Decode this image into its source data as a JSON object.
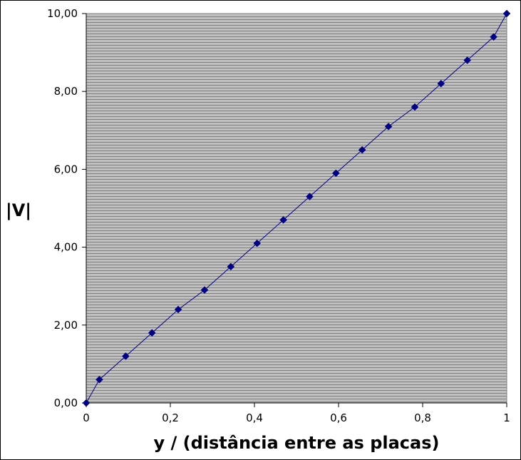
{
  "chart_data": {
    "type": "line",
    "title": "",
    "xlabel": "y / (distância entre as placas)",
    "ylabel": "|V|",
    "xlim": [
      0,
      1
    ],
    "ylim": [
      0,
      10
    ],
    "x_ticks": [
      0,
      0.2,
      0.4,
      0.6,
      0.8,
      1
    ],
    "x_tick_labels": [
      "0",
      "0,2",
      "0,4",
      "0,6",
      "0,8",
      "1"
    ],
    "y_ticks": [
      0,
      2,
      4,
      6,
      8,
      10
    ],
    "y_tick_labels": [
      "0,00",
      "2,00",
      "4,00",
      "6,00",
      "8,00",
      "10,00"
    ],
    "grid": "horizontal",
    "legend": "none",
    "colors": {
      "plot_background": "#c0c0c0",
      "gridline": "#808080",
      "series": "#000080"
    },
    "marker": "diamond",
    "series": [
      {
        "x": [
          0,
          0.0313,
          0.0938,
          0.1563,
          0.2188,
          0.2813,
          0.3438,
          0.4063,
          0.4688,
          0.5313,
          0.5938,
          0.6563,
          0.7188,
          0.7813,
          0.8438,
          0.9063,
          0.9688,
          1
        ],
        "values": [
          0,
          0.6,
          1.2,
          1.8,
          2.4,
          2.9,
          3.5,
          4.1,
          4.7,
          5.3,
          5.9,
          6.5,
          7.1,
          7.6,
          8.2,
          8.8,
          9.4,
          10
        ]
      }
    ]
  }
}
